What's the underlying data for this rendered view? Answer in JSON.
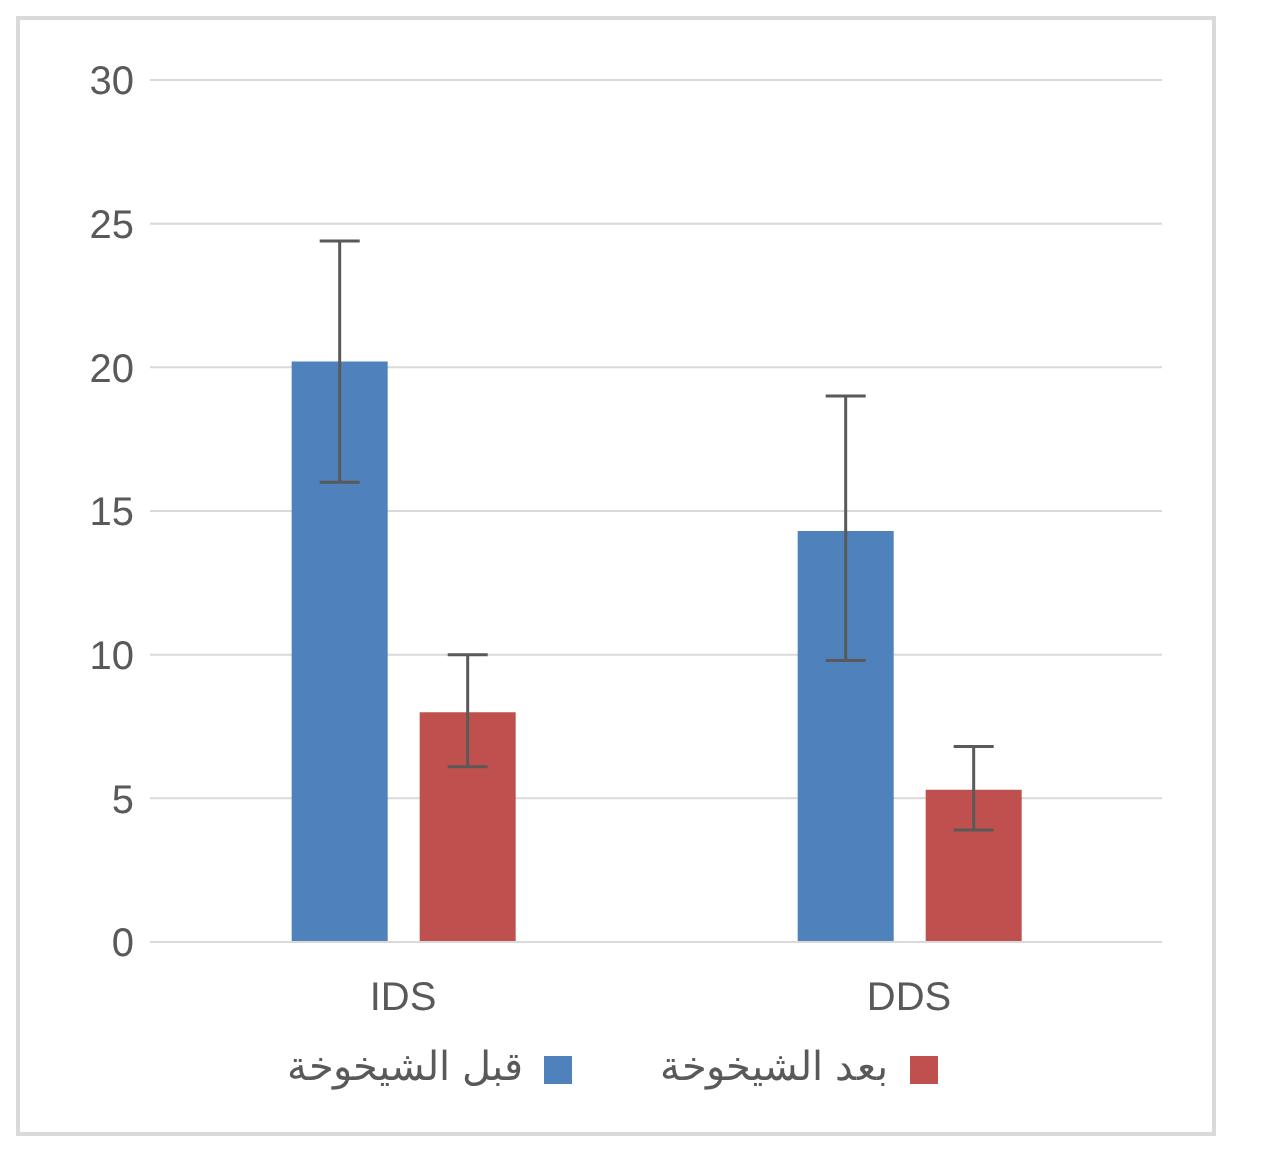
{
  "chart_data": {
    "type": "bar",
    "categories": [
      "IDS",
      "DDS"
    ],
    "series": [
      {
        "name": "قبل الشيخوخة",
        "color": "#4f81bd",
        "values": [
          20.2,
          14.3
        ],
        "errors": [
          [
            16.0,
            24.4
          ],
          [
            9.8,
            19.0
          ]
        ]
      },
      {
        "name": "بعد الشيخوخة",
        "color": "#c0504d",
        "values": [
          8.0,
          5.3
        ],
        "errors": [
          [
            6.1,
            10.0
          ],
          [
            3.9,
            6.8
          ]
        ]
      }
    ],
    "ylim": [
      0,
      30
    ],
    "yticks": [
      0,
      5,
      10,
      15,
      20,
      25,
      30
    ],
    "grid": "y",
    "legend": "bottom"
  }
}
